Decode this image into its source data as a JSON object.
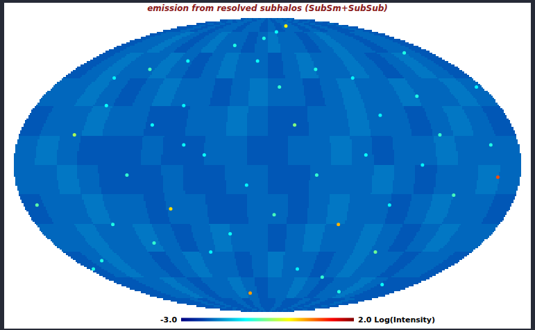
{
  "chart_data": {
    "type": "heatmap",
    "title": "emission from resolved subhalos (SubSm+SubSub)",
    "color": "Jet",
    "tick_labels": false,
    "cells": [
      [
        -2.2,
        -2.2,
        -2.1,
        -2.2,
        -2.1,
        -2.2,
        -2.1,
        -2.1,
        -2.2,
        -2.1,
        -2.1,
        -2.2,
        -2.1,
        -2.2,
        -2.1,
        -2.1,
        -2.2,
        -2.1,
        -2.2,
        -2.1,
        -2.2,
        -2.2,
        -2.1,
        -2.2
      ],
      [
        -2.2,
        -2.1,
        -2.1,
        -2.0,
        -2.1,
        -2.2,
        -2.1,
        -2.0,
        -2.1,
        -2.1,
        -2.2,
        -2.1,
        -2.0,
        -2.1,
        -2.1,
        -2.2,
        -2.1,
        -2.0,
        -2.1,
        -2.1,
        -2.2,
        -2.1,
        -2.1,
        -2.2
      ],
      [
        -2.2,
        -2.1,
        -2.0,
        -2.1,
        -2.1,
        -2.0,
        -2.1,
        -2.2,
        -2.1,
        -2.0,
        -2.1,
        -2.1,
        -2.2,
        -2.1,
        -2.0,
        -2.1,
        -2.1,
        -2.0,
        -2.1,
        -2.2,
        -2.1,
        -2.0,
        -2.1,
        -2.2
      ],
      [
        -2.1,
        -2.1,
        -2.0,
        -2.1,
        -2.2,
        -2.1,
        -2.0,
        -2.1,
        -2.1,
        -2.2,
        -2.1,
        -2.0,
        -2.1,
        -2.1,
        -2.2,
        -2.1,
        -2.0,
        -2.1,
        -2.1,
        -2.0,
        -2.1,
        -2.1,
        -2.0,
        -2.1
      ],
      [
        -2.2,
        -2.1,
        -2.1,
        -2.0,
        -2.1,
        -2.1,
        -2.2,
        -2.2,
        -2.1,
        -2.1,
        -2.0,
        -2.1,
        -2.2,
        -2.2,
        -2.1,
        -2.1,
        -2.0,
        -2.1,
        -2.1,
        -2.2,
        -2.1,
        -2.0,
        -2.1,
        -2.2
      ],
      [
        -2.1,
        -2.0,
        -2.1,
        -2.2,
        -2.2,
        -2.2,
        -2.1,
        -2.2,
        -2.2,
        -2.1,
        -2.1,
        -2.2,
        -2.2,
        -2.1,
        -2.1,
        -2.0,
        -2.1,
        -2.2,
        -2.1,
        -2.1,
        -2.0,
        -2.1,
        -2.1,
        -2.1
      ],
      [
        -2.1,
        -2.1,
        -2.0,
        -2.1,
        -2.2,
        -2.2,
        -2.2,
        -2.1,
        -2.2,
        -2.2,
        -2.1,
        -2.1,
        -2.2,
        -2.2,
        -2.1,
        -2.1,
        -2.1,
        -2.0,
        -2.1,
        -2.2,
        -2.1,
        -2.1,
        -2.0,
        -2.1
      ],
      [
        -2.2,
        -2.1,
        -2.1,
        -2.0,
        -2.1,
        -2.1,
        -2.2,
        -2.1,
        -2.1,
        -2.2,
        -2.2,
        -2.1,
        -2.1,
        -2.2,
        -2.1,
        -2.0,
        -2.1,
        -2.1,
        -2.2,
        -2.1,
        -2.0,
        -2.1,
        -2.1,
        -2.2
      ],
      [
        -2.1,
        -2.1,
        -2.0,
        -2.1,
        -2.1,
        -2.0,
        -2.1,
        -2.2,
        -2.1,
        -2.0,
        -2.1,
        -2.1,
        -2.2,
        -2.1,
        -2.0,
        -2.1,
        -2.1,
        -2.0,
        -2.1,
        -2.2,
        -2.1,
        -2.0,
        -2.1,
        -2.1
      ],
      [
        -2.2,
        -2.1,
        -2.0,
        -2.1,
        -2.1,
        -2.2,
        -2.1,
        -2.0,
        -2.1,
        -2.1,
        -2.2,
        -2.1,
        -2.0,
        -2.1,
        -2.1,
        -2.2,
        -2.1,
        -2.0,
        -2.1,
        -2.1,
        -2.2,
        -2.1,
        -2.1,
        -2.2
      ],
      [
        -2.2,
        -2.2,
        -2.1,
        -2.1,
        -2.0,
        -2.1,
        -2.2,
        -2.1,
        -2.1,
        -2.0,
        -2.1,
        -2.2,
        -2.1,
        -2.1,
        -2.0,
        -2.1,
        -2.2,
        -2.1,
        -2.1,
        -2.0,
        -2.1,
        -2.2,
        -2.2,
        -2.2
      ],
      [
        -2.2,
        -2.2,
        -2.2,
        -2.1,
        -2.2,
        -2.1,
        -2.2,
        -2.2,
        -2.1,
        -2.2,
        -2.1,
        -2.2,
        -2.2,
        -2.1,
        -2.2,
        -2.2,
        -2.1,
        -2.2,
        -2.1,
        -2.2,
        -2.2,
        -2.1,
        -2.2,
        -2.2
      ]
    ],
    "sources": {
      "lon": [
        164,
        55,
        -72,
        -25,
        40,
        -140,
        -110,
        120,
        95,
        -60,
        10,
        -15,
        150,
        -170,
        70,
        -95,
        30,
        -40,
        135,
        -125,
        85,
        -5,
        60,
        -80,
        110,
        -155,
        20,
        -30,
        175,
        -100,
        45,
        -65,
        140,
        5,
        -120,
        90,
        -45,
        125,
        -175,
        75,
        -10,
        100,
        -135,
        35,
        -85,
        160,
        -50,
        15
      ],
      "lat": [
        -6,
        -30,
        -22,
        -71,
        80,
        15,
        50,
        35,
        -45,
        10,
        40,
        -10,
        60,
        -20,
        5,
        -40,
        -55,
        65,
        -15,
        30,
        25,
        70,
        -60,
        55,
        0,
        -50,
        20,
        -35,
        40,
        -5,
        50,
        30,
        -65,
        -25,
        -30,
        -20,
        5,
        15,
        -55,
        45,
        55,
        -70,
        45,
        -5,
        20,
        10,
        -45,
        75
      ],
      "values": [
        1.0,
        0.5,
        0.3,
        0.6,
        0.2,
        -0.3,
        -0.8,
        -1.0,
        -0.6,
        -1.1,
        -0.9,
        -1.2,
        -1.0,
        -0.7,
        -1.1,
        -0.9,
        -1.2,
        -1.0,
        -0.8,
        -1.1,
        -1.2,
        -1.0,
        -0.9,
        -1.1,
        -1.2,
        -1.0,
        -0.5,
        -1.1,
        -1.2,
        -0.9,
        -1.0,
        -1.2,
        -1.1,
        -0.8,
        -1.0,
        -1.2,
        -1.1,
        -0.9,
        -1.0,
        -1.2,
        -1.1,
        -1.0,
        -1.2,
        -0.9,
        -1.1,
        -1.0,
        -1.2,
        -1.1
      ]
    },
    "colorbar": {
      "range": [
        -3,
        2
      ],
      "ticks": [
        {
          "value": -3,
          "label": "-3.0"
        },
        {
          "value": 2,
          "label": "2.0"
        }
      ],
      "label": "Log(Intensity)"
    }
  }
}
